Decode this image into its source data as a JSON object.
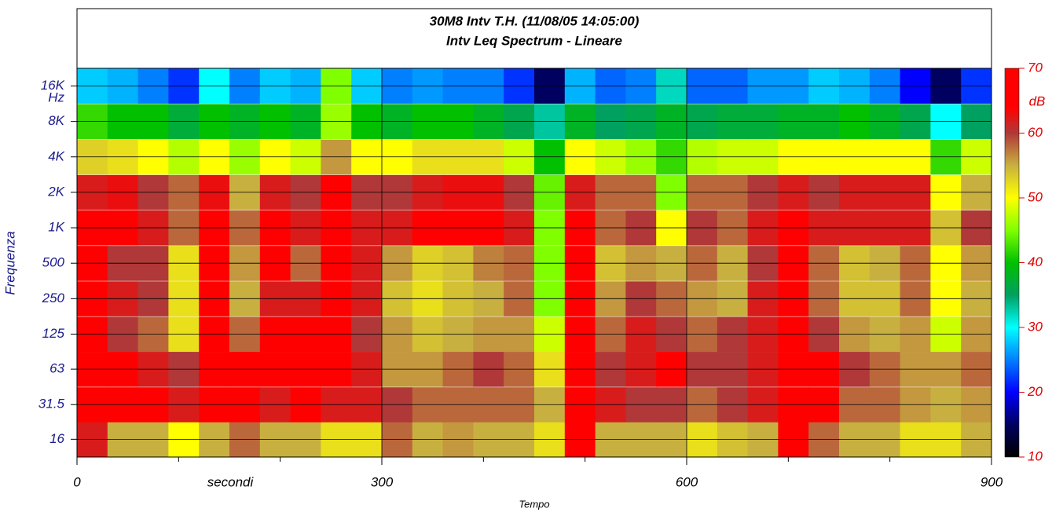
{
  "chart_data": {
    "type": "heatmap",
    "title": "30M8 Intv T.H. (11/08/05 14:05:00)",
    "subtitle": "Intv Leq Spectrum - Lineare",
    "x_label": "Tempo",
    "x_unit_label": "secondi",
    "y_label": "Frequenza",
    "y_unit_label": "Hz",
    "colorbar_label": "dB",
    "x": [
      15,
      45,
      75,
      105,
      135,
      165,
      195,
      225,
      255,
      285,
      315,
      345,
      375,
      405,
      435,
      465,
      495,
      525,
      555,
      585,
      615,
      645,
      675,
      705,
      735,
      765,
      795,
      825,
      855,
      885
    ],
    "x_cell_width": 30,
    "y": [
      16,
      31.5,
      63,
      125,
      250,
      500,
      1000,
      2000,
      4000,
      8000,
      16000
    ],
    "log_y": true,
    "xlim": [
      0,
      900
    ],
    "xticks": [
      0,
      300,
      600,
      900
    ],
    "xminor": [
      100,
      200,
      400,
      500,
      700,
      800
    ],
    "ylim": [
      11.3,
      22600
    ],
    "yticks": [
      16,
      31.5,
      63,
      125,
      250,
      500,
      {
        "value": 1000,
        "label": "1K"
      },
      {
        "value": 2000,
        "label": "2K"
      },
      {
        "value": 4000,
        "label": "4K"
      },
      {
        "value": 8000,
        "label": "8K"
      },
      {
        "value": 16000,
        "label": "16K"
      }
    ],
    "grid": true,
    "clim": [
      10,
      70
    ],
    "cticks": [
      10,
      20,
      30,
      40,
      50,
      60,
      70
    ],
    "colorscale": [
      [
        10,
        "#000000"
      ],
      [
        15,
        "#000060"
      ],
      [
        20,
        "#0000ff"
      ],
      [
        30,
        "#00ffff"
      ],
      [
        35,
        "#00a060"
      ],
      [
        40,
        "#00c000"
      ],
      [
        45,
        "#80ff00"
      ],
      [
        50,
        "#ffff00"
      ],
      [
        55,
        "#c8b040"
      ],
      [
        60,
        "#b03838"
      ],
      [
        64,
        "#ff0000"
      ],
      [
        70,
        "#ff0000"
      ]
    ],
    "z": [
      [
        62,
        55,
        55,
        50,
        55,
        58,
        55,
        55,
        52,
        52,
        58,
        55,
        56,
        55,
        55,
        52,
        66,
        55,
        55,
        55,
        52,
        54,
        55,
        66,
        58,
        55,
        55,
        52,
        52,
        55
      ],
      [
        68,
        65,
        66,
        62,
        68,
        66,
        62,
        66,
        62,
        62,
        60,
        58,
        58,
        58,
        58,
        55,
        66,
        62,
        60,
        60,
        58,
        60,
        62,
        68,
        66,
        58,
        58,
        56,
        55,
        56
      ],
      [
        68,
        66,
        62,
        60,
        68,
        64,
        66,
        68,
        68,
        62,
        56,
        56,
        58,
        60,
        58,
        52,
        66,
        60,
        62,
        64,
        60,
        60,
        62,
        68,
        68,
        60,
        58,
        56,
        56,
        58
      ],
      [
        68,
        60,
        58,
        52,
        66,
        58,
        66,
        64,
        68,
        60,
        56,
        54,
        55,
        56,
        56,
        48,
        66,
        58,
        62,
        60,
        58,
        60,
        62,
        66,
        60,
        56,
        55,
        56,
        48,
        56
      ],
      [
        68,
        62,
        60,
        52,
        66,
        55,
        62,
        62,
        68,
        62,
        54,
        52,
        54,
        55,
        58,
        45,
        68,
        56,
        60,
        58,
        56,
        55,
        62,
        64,
        58,
        54,
        54,
        58,
        50,
        55
      ],
      [
        68,
        60,
        60,
        52,
        64,
        56,
        64,
        58,
        68,
        62,
        56,
        53,
        54,
        57,
        58,
        45,
        68,
        54,
        56,
        55,
        58,
        55,
        60,
        64,
        58,
        54,
        55,
        58,
        50,
        56
      ],
      [
        66,
        66,
        62,
        58,
        66,
        58,
        66,
        62,
        68,
        62,
        62,
        64,
        64,
        64,
        62,
        45,
        66,
        58,
        60,
        50,
        60,
        58,
        62,
        66,
        62,
        62,
        62,
        62,
        54,
        60
      ],
      [
        62,
        63,
        60,
        58,
        63,
        55,
        62,
        60,
        66,
        60,
        60,
        62,
        63,
        63,
        60,
        44,
        62,
        58,
        58,
        45,
        58,
        58,
        60,
        62,
        60,
        62,
        62,
        62,
        50,
        55
      ],
      [
        53,
        52,
        50,
        47,
        50,
        46,
        50,
        48,
        56,
        50,
        50,
        52,
        52,
        52,
        48,
        40,
        50,
        48,
        46,
        42,
        47,
        48,
        48,
        50,
        50,
        50,
        50,
        50,
        42,
        48
      ],
      [
        42,
        40,
        40,
        37,
        40,
        38,
        40,
        38,
        46,
        40,
        38,
        40,
        40,
        38,
        36,
        33,
        38,
        35,
        36,
        38,
        36,
        37,
        37,
        38,
        38,
        40,
        38,
        36,
        30,
        35
      ],
      [
        28,
        27,
        25,
        22,
        30,
        25,
        28,
        27,
        45,
        28,
        25,
        26,
        25,
        25,
        22,
        15,
        27,
        24,
        25,
        32,
        24,
        24,
        26,
        26,
        28,
        27,
        25,
        20,
        15,
        22
      ]
    ]
  }
}
